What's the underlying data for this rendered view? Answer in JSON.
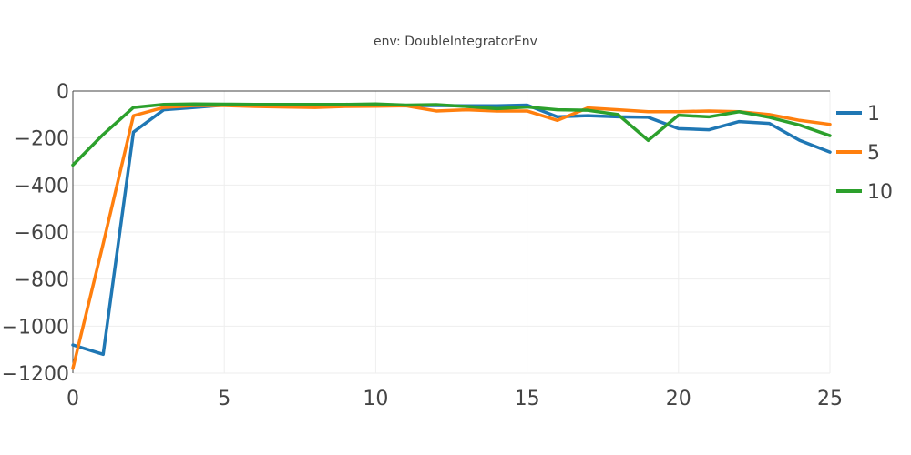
{
  "chart_data": {
    "type": "line",
    "title": "env: DoubleIntegratorEnv",
    "xlabel": "",
    "ylabel": "",
    "xlim": [
      0,
      25
    ],
    "ylim": [
      -1200,
      0
    ],
    "xticks": [
      0,
      5,
      10,
      15,
      20,
      25
    ],
    "yticks": [
      0,
      -200,
      -400,
      -600,
      -800,
      -1000,
      -1200
    ],
    "xtick_labels": [
      "0",
      "5",
      "10",
      "15",
      "20",
      "25"
    ],
    "ytick_labels": [
      "0",
      "−200",
      "−400",
      "−600",
      "−800",
      "−1000",
      "−1200"
    ],
    "grid": true,
    "legend_position": "right",
    "x": [
      0,
      1,
      2,
      3,
      4,
      5,
      6,
      7,
      8,
      9,
      10,
      11,
      12,
      13,
      14,
      15,
      16,
      17,
      18,
      19,
      20,
      21,
      22,
      23,
      24,
      25
    ],
    "series": [
      {
        "name": "1",
        "color": "#1f77b4",
        "values": [
          -1080,
          -1120,
          -175,
          -80,
          -70,
          -60,
          -60,
          -62,
          -63,
          -63,
          -62,
          -62,
          -62,
          -63,
          -63,
          -60,
          -110,
          -105,
          -110,
          -112,
          -160,
          -165,
          -130,
          -138,
          -210,
          -260
        ]
      },
      {
        "name": "5",
        "color": "#ff7f0e",
        "values": [
          -1180,
          -650,
          -105,
          -70,
          -62,
          -62,
          -66,
          -68,
          -70,
          -66,
          -65,
          -63,
          -85,
          -80,
          -85,
          -85,
          -125,
          -72,
          -80,
          -88,
          -88,
          -85,
          -88,
          -100,
          -125,
          -142
        ]
      },
      {
        "name": "10",
        "color": "#2ca02c",
        "values": [
          -315,
          -185,
          -70,
          -57,
          -55,
          -56,
          -57,
          -57,
          -57,
          -57,
          -55,
          -60,
          -58,
          -66,
          -75,
          -68,
          -80,
          -82,
          -100,
          -210,
          -103,
          -110,
          -88,
          -112,
          -145,
          -190
        ]
      }
    ]
  }
}
